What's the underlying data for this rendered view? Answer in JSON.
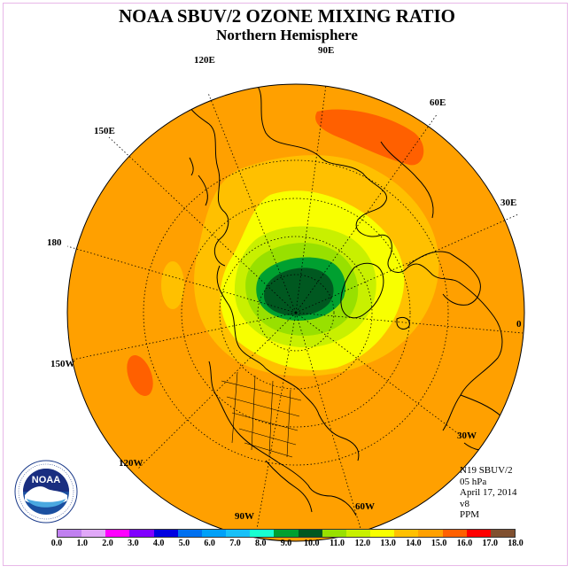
{
  "title": "NOAA SBUV/2 OZONE MIXING RATIO",
  "subtitle": "Northern Hemisphere",
  "longitude_labels": {
    "lon_90e": "90E",
    "lon_60e": "60E",
    "lon_30e": "30E",
    "lon_0": "0",
    "lon_30w": "30W",
    "lon_60w": "60W",
    "lon_90w": "90W",
    "lon_120w": "120W",
    "lon_150w": "150W",
    "lon_180": "180",
    "lon_150e": "150E",
    "lon_120e": "120E"
  },
  "info": {
    "satellite": "N19 SBUV/2",
    "level": "05 hPa",
    "date": "April 17, 2014",
    "version": "v8",
    "units": "PPM"
  },
  "colorbar": {
    "ticks": [
      "0.0",
      "1.0",
      "2.0",
      "3.0",
      "4.0",
      "5.0",
      "6.0",
      "7.0",
      "8.0",
      "9.0",
      "10.0",
      "11.0",
      "12.0",
      "13.0",
      "14.0",
      "15.0",
      "16.0",
      "17.0",
      "18.0"
    ],
    "colors": [
      "#c080f0",
      "#e0a8f8",
      "#ff00ff",
      "#8000ff",
      "#0000e0",
      "#0070f0",
      "#00a0f8",
      "#18c0f8",
      "#18ffd0",
      "#00a030",
      "#005820",
      "#98e000",
      "#c8f000",
      "#f8ff00",
      "#ffc000",
      "#ffa000",
      "#ff6000",
      "#ff0000",
      "#805030"
    ]
  },
  "logo": {
    "text": "NOAA",
    "ring_text": "NATIONAL OCEANIC AND ATMOSPHERIC ADMINISTRATION · U.S. DEPARTMENT OF COMMERCE"
  }
}
